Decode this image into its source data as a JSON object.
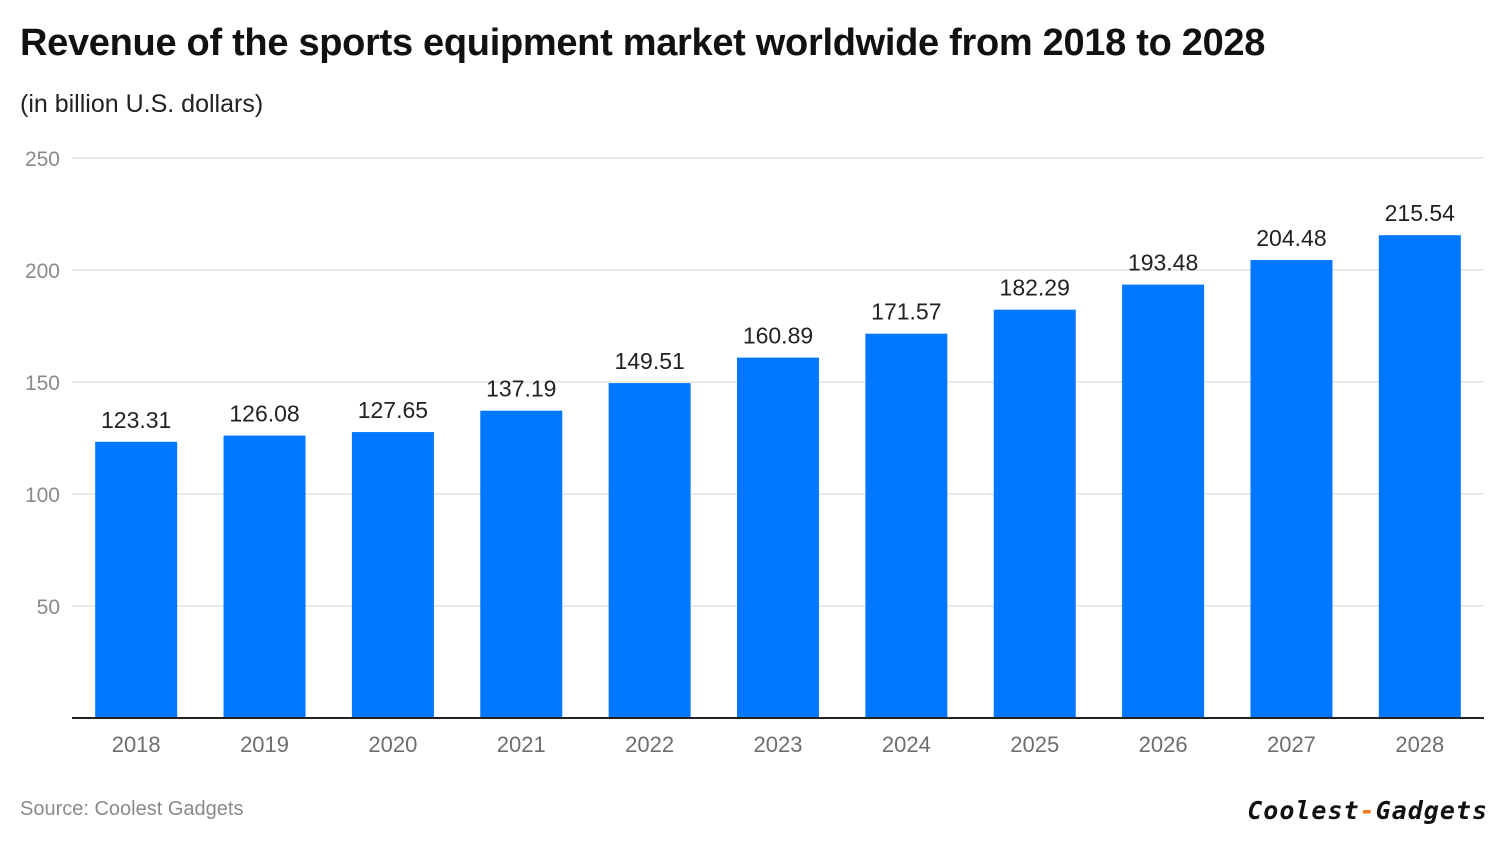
{
  "header": {
    "title": "Revenue of the sports equipment market worldwide from 2018 to 2028",
    "subtitle": "(in billion U.S. dollars)"
  },
  "footer": {
    "source": "Source: Coolest Gadgets",
    "logo_left": "Coolest",
    "logo_sep": "-",
    "logo_right": "Gadgets"
  },
  "colors": {
    "bar": "#0277FF",
    "grid": "#e3e3e3",
    "axis": "#222222",
    "tick_text": "#8a8a8a",
    "label_text": "#222222",
    "logo_accent": "#f47b20"
  },
  "chart_data": {
    "type": "bar",
    "title": "Revenue of the sports equipment market worldwide from 2018 to 2028",
    "subtitle": "(in billion U.S. dollars)",
    "xlabel": "",
    "ylabel": "",
    "categories": [
      "2018",
      "2019",
      "2020",
      "2021",
      "2022",
      "2023",
      "2024",
      "2025",
      "2026",
      "2027",
      "2028"
    ],
    "values": [
      123.31,
      126.08,
      127.65,
      137.19,
      149.51,
      160.89,
      171.57,
      182.29,
      193.48,
      204.48,
      215.54
    ],
    "data_labels": [
      "123.31",
      "126.08",
      "127.65",
      "137.19",
      "149.51",
      "160.89",
      "171.57",
      "182.29",
      "193.48",
      "204.48",
      "215.54"
    ],
    "yticks": [
      50,
      100,
      150,
      200,
      250
    ],
    "ylim": [
      0,
      250
    ],
    "grid": true,
    "legend": "none"
  }
}
